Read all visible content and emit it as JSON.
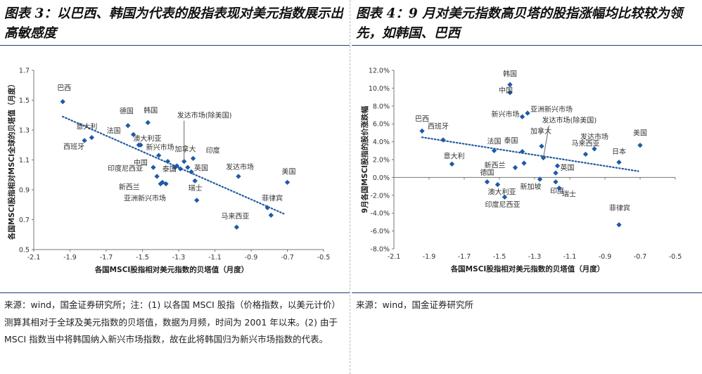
{
  "left": {
    "title": "图表 3：以巴西、韩国为代表的股指表现对美元指数展示出高敏感度",
    "source": "来源：wind，国金证券研究所；注：(1) 以各国 MSCI 股指（价格指数，以美元计价）测算其相对于全球及美元指数的贝塔值，数据为月频，时间为 2001 年以来。(2) 由于 MSCI 指数当中将韩国纳入新兴市场指数，故在此将韩国归为新兴市场指数的代表。"
  },
  "right": {
    "title": "图表 4：9 月对美元指数高贝塔的股指涨幅均比较较为领先，如韩国、巴西",
    "source": "来源：wind，国金证券研究所"
  },
  "colors": {
    "point": "#1f5aa6",
    "trend": "#1f5aa6",
    "rule": "#1f3f7a"
  },
  "chart_data": [
    {
      "type": "scatter",
      "xlabel": "各国MSCI股指相对美元指数的贝塔值（月度）",
      "ylabel": "各国MSCI股指相对MSCI全球的贝塔值（月度）",
      "xlim": [
        -2.1,
        -0.5
      ],
      "ylim": [
        0.5,
        1.7
      ],
      "xticks": [
        "-2.1",
        "-1.9",
        "-1.7",
        "-1.5",
        "-1.3",
        "-1.1",
        "-0.9",
        "-0.7",
        "-0.5"
      ],
      "yticks": [
        "0.5",
        "0.7",
        "0.9",
        "1.1",
        "1.3",
        "1.5",
        "1.7"
      ],
      "trendline": {
        "x": [
          -1.94,
          -0.72
        ],
        "y": [
          1.39,
          0.74
        ],
        "style": "dotted"
      },
      "points": [
        {
          "name": "巴西",
          "x": -1.94,
          "y": 1.49
        },
        {
          "name": "西班牙",
          "x": -1.82,
          "y": 1.23
        },
        {
          "name": "意大利",
          "x": -1.78,
          "y": 1.25
        },
        {
          "name": "德国",
          "x": -1.58,
          "y": 1.33
        },
        {
          "name": "法国",
          "x": -1.55,
          "y": 1.27
        },
        {
          "name": "澳大利亚",
          "x": -1.52,
          "y": 1.2
        },
        {
          "name": "",
          "x": -1.51,
          "y": 1.2
        },
        {
          "name": "韩国",
          "x": -1.47,
          "y": 1.35
        },
        {
          "name": "新兴市场",
          "x": -1.41,
          "y": 1.13
        },
        {
          "name": "中国",
          "x": -1.44,
          "y": 1.05
        },
        {
          "name": "加拿大",
          "x": -1.36,
          "y": 1.09
        },
        {
          "name": "泰国",
          "x": -1.32,
          "y": 1.05
        },
        {
          "name": "印度尼西亚",
          "x": -1.42,
          "y": 0.99
        },
        {
          "name": "新西兰",
          "x": -1.39,
          "y": 0.95
        },
        {
          "name": "",
          "x": -1.4,
          "y": 0.94
        },
        {
          "name": "亚洲新兴市场",
          "x": -1.37,
          "y": 0.94
        },
        {
          "name": "",
          "x": -1.31,
          "y": 1.06
        },
        {
          "name": "",
          "x": -1.29,
          "y": 1.04
        },
        {
          "name": "发达市场(除美国)",
          "x": -1.27,
          "y": 1.09
        },
        {
          "name": "",
          "x": -1.25,
          "y": 1.05
        },
        {
          "name": "印度",
          "x": -1.22,
          "y": 1.11
        },
        {
          "name": "英国",
          "x": -1.23,
          "y": 1.02
        },
        {
          "name": "",
          "x": -1.21,
          "y": 0.96
        },
        {
          "name": "瑞士",
          "x": -1.2,
          "y": 0.83
        },
        {
          "name": "发达市场",
          "x": -0.97,
          "y": 0.99
        },
        {
          "name": "马来西亚",
          "x": -0.98,
          "y": 0.65
        },
        {
          "name": "菲律宾",
          "x": -0.81,
          "y": 0.78
        },
        {
          "name": "",
          "x": -0.79,
          "y": 0.73
        },
        {
          "name": "美国",
          "x": -0.7,
          "y": 0.95
        }
      ]
    },
    {
      "type": "scatter",
      "xlabel": "各国MSCI股指相对美元指数的贝塔值（月度）",
      "ylabel": "9月各国MSCI股指的股价涨跌幅",
      "xlim": [
        -2.1,
        -0.5
      ],
      "ylim": [
        -8.0,
        12.0
      ],
      "xticks": [
        "-2.1",
        "-1.9",
        "-1.7",
        "-1.5",
        "-1.3",
        "-1.1",
        "-0.9",
        "-0.7",
        "-0.5"
      ],
      "yticks": [
        "-8.0%",
        "-6.0%",
        "-4.0%",
        "-2.0%",
        "0.0%",
        "2.0%",
        "4.0%",
        "6.0%",
        "8.0%",
        "10.0%",
        "12.0%"
      ],
      "trendline": {
        "x": [
          -1.94,
          -0.71
        ],
        "y": [
          4.5,
          0.7
        ],
        "style": "dotted"
      },
      "points": [
        {
          "name": "巴西",
          "x": -1.94,
          "y": 5.2
        },
        {
          "name": "西班牙",
          "x": -1.82,
          "y": 4.2
        },
        {
          "name": "意大利",
          "x": -1.77,
          "y": 1.5
        },
        {
          "name": "法国",
          "x": -1.53,
          "y": 3.0
        },
        {
          "name": "德国",
          "x": -1.57,
          "y": -0.5
        },
        {
          "name": "澳大利亚",
          "x": -1.51,
          "y": -0.8
        },
        {
          "name": "印度尼西亚",
          "x": -1.47,
          "y": -2.2
        },
        {
          "name": "韩国",
          "x": -1.44,
          "y": 10.4
        },
        {
          "name": "中国",
          "x": -1.44,
          "y": 9.5
        },
        {
          "name": "新兴市场",
          "x": -1.37,
          "y": 6.8
        },
        {
          "name": "亚洲新兴市场",
          "x": -1.34,
          "y": 7.2
        },
        {
          "name": "泰国",
          "x": -1.37,
          "y": 2.9
        },
        {
          "name": "新西兰",
          "x": -1.41,
          "y": 1.1
        },
        {
          "name": "",
          "x": -1.36,
          "y": 1.6
        },
        {
          "name": "加拿大",
          "x": -1.26,
          "y": 3.5
        },
        {
          "name": "发达市场(除美国)",
          "x": -1.25,
          "y": 2.2
        },
        {
          "name": "新加坡",
          "x": -1.27,
          "y": -0.2
        },
        {
          "name": "英国",
          "x": -1.17,
          "y": 1.3
        },
        {
          "name": "",
          "x": -1.18,
          "y": 0.5
        },
        {
          "name": "印度",
          "x": -1.18,
          "y": -0.5
        },
        {
          "name": "瑞士",
          "x": -1.16,
          "y": -1.2
        },
        {
          "name": "马来西亚",
          "x": -1.01,
          "y": 2.6
        },
        {
          "name": "发达市场",
          "x": -0.96,
          "y": 3.2
        },
        {
          "name": "日本",
          "x": -0.82,
          "y": 1.7
        },
        {
          "name": "美国",
          "x": -0.7,
          "y": 3.6
        },
        {
          "name": "菲律宾",
          "x": -0.82,
          "y": -5.3
        }
      ]
    }
  ]
}
